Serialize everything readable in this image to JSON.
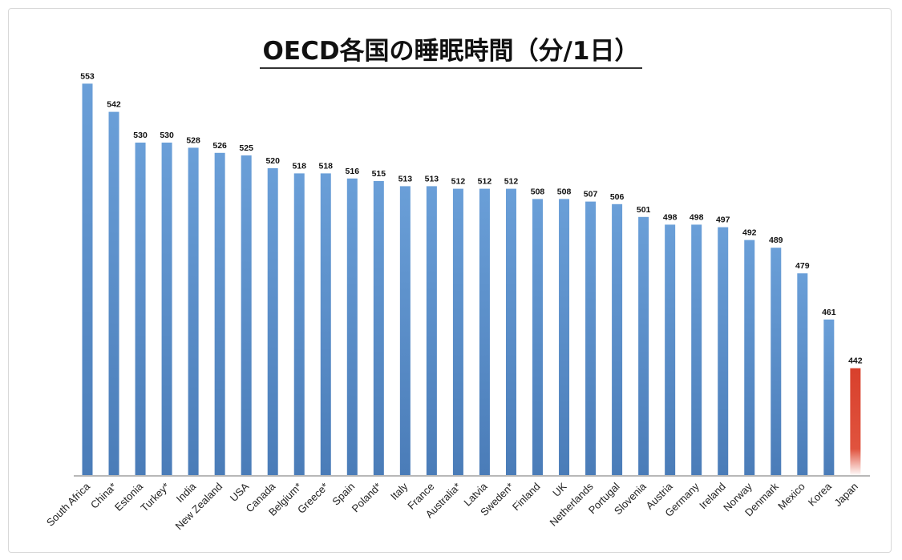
{
  "chart_data": {
    "type": "bar",
    "title": "OECD各国の睡眠時間（分/1日）",
    "xlabel": "",
    "ylabel": "",
    "ylim": [
      400,
      560
    ],
    "grid": false,
    "categories": [
      "South Africa",
      "China*",
      "Estonia",
      "Turkey*",
      "India",
      "New Zealand",
      "USA",
      "Canada",
      "Belgium*",
      "Greece*",
      "Spain",
      "Poland*",
      "Italy",
      "France",
      "Australia*",
      "Latvia",
      "Sweden*",
      "Finland",
      "UK",
      "Netherlands",
      "Portugal",
      "Slovenia",
      "Austria",
      "Germany",
      "Ireland",
      "Norway",
      "Denmark",
      "Mexico",
      "Korea",
      "Japan"
    ],
    "values": [
      553,
      542,
      530,
      530,
      528,
      526,
      525,
      520,
      518,
      518,
      516,
      515,
      513,
      513,
      512,
      512,
      512,
      508,
      508,
      507,
      506,
      501,
      498,
      498,
      497,
      492,
      489,
      479,
      461,
      442
    ],
    "highlight": "Japan",
    "colors": {
      "bar": "#5b8fc9",
      "highlight": "#d8402c"
    }
  }
}
